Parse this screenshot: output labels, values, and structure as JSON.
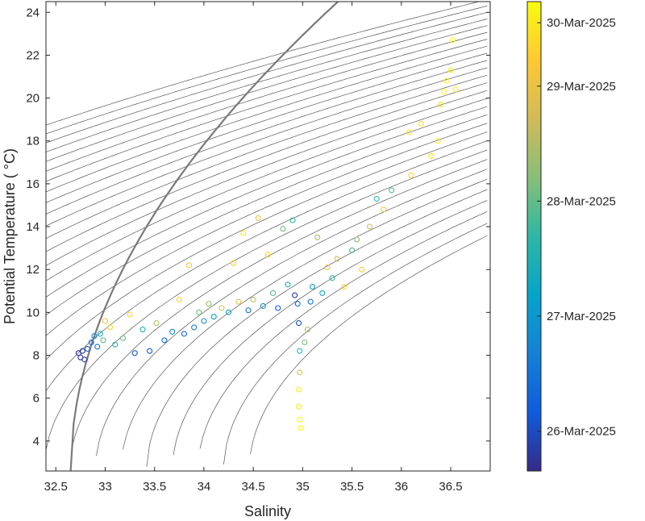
{
  "chart_data": {
    "type": "scatter",
    "title": "",
    "xlabel": "Salinity",
    "ylabel": "Potential Temperature ( °C)",
    "xlim": [
      32.4,
      36.9
    ],
    "ylim": [
      2.6,
      24.5
    ],
    "x_ticks": [
      32.5,
      33,
      33.5,
      34,
      34.5,
      35,
      35.5,
      36,
      36.5
    ],
    "x_tick_labels": [
      "32.5",
      "33",
      "33.5",
      "34",
      "34.5",
      "35",
      "35.5",
      "36",
      "36.5"
    ],
    "y_ticks": [
      4,
      6,
      8,
      10,
      12,
      14,
      16,
      18,
      20,
      22,
      24
    ],
    "y_tick_labels": [
      "4",
      "6",
      "8",
      "10",
      "12",
      "14",
      "16",
      "18",
      "20",
      "22",
      "24"
    ],
    "grid": false,
    "density_contours": "thin gray isopycnals with one bold reference isopycnal",
    "colorbar": {
      "label_values": [
        "26-Mar-2025",
        "27-Mar-2025",
        "28-Mar-2025",
        "29-Mar-2025",
        "30-Mar-2025"
      ],
      "tick_positions": [
        0.085,
        0.33,
        0.575,
        0.82,
        0.955
      ],
      "colormap": [
        "#352a87",
        "#0f5cdd",
        "#1481d6",
        "#06a4ca",
        "#2eb7a4",
        "#87bf77",
        "#d1bb59",
        "#fec832",
        "#f9fb0e"
      ]
    },
    "series": [
      {
        "note": "observations colored by date (0 = start, 1 = end of record)",
        "points": [
          {
            "s": 32.73,
            "t": 8.1,
            "c": 0.02
          },
          {
            "s": 32.75,
            "t": 7.9,
            "c": 0.03
          },
          {
            "s": 32.77,
            "t": 8.2,
            "c": 0.05
          },
          {
            "s": 32.79,
            "t": 7.8,
            "c": 0.04
          },
          {
            "s": 32.82,
            "t": 8.3,
            "c": 0.1
          },
          {
            "s": 32.86,
            "t": 8.6,
            "c": 0.18
          },
          {
            "s": 32.89,
            "t": 8.9,
            "c": 0.25
          },
          {
            "s": 32.92,
            "t": 8.4,
            "c": 0.2
          },
          {
            "s": 32.95,
            "t": 9.0,
            "c": 0.42
          },
          {
            "s": 32.98,
            "t": 8.7,
            "c": 0.55
          },
          {
            "s": 33.0,
            "t": 9.6,
            "c": 0.85
          },
          {
            "s": 33.05,
            "t": 9.3,
            "c": 0.9
          },
          {
            "s": 33.1,
            "t": 8.5,
            "c": 0.5
          },
          {
            "s": 33.18,
            "t": 8.8,
            "c": 0.6
          },
          {
            "s": 33.25,
            "t": 9.9,
            "c": 0.9
          },
          {
            "s": 33.3,
            "t": 8.1,
            "c": 0.1
          },
          {
            "s": 33.38,
            "t": 9.2,
            "c": 0.45
          },
          {
            "s": 33.45,
            "t": 8.2,
            "c": 0.12
          },
          {
            "s": 33.52,
            "t": 9.5,
            "c": 0.7
          },
          {
            "s": 33.6,
            "t": 8.7,
            "c": 0.2
          },
          {
            "s": 33.68,
            "t": 9.1,
            "c": 0.3
          },
          {
            "s": 33.75,
            "t": 10.6,
            "c": 0.9
          },
          {
            "s": 33.8,
            "t": 9.0,
            "c": 0.15
          },
          {
            "s": 33.85,
            "t": 12.2,
            "c": 0.85
          },
          {
            "s": 33.9,
            "t": 9.3,
            "c": 0.25
          },
          {
            "s": 33.95,
            "t": 10.0,
            "c": 0.6
          },
          {
            "s": 34.0,
            "t": 9.6,
            "c": 0.3
          },
          {
            "s": 34.05,
            "t": 10.4,
            "c": 0.65
          },
          {
            "s": 34.1,
            "t": 9.8,
            "c": 0.35
          },
          {
            "s": 34.18,
            "t": 10.2,
            "c": 0.75
          },
          {
            "s": 34.25,
            "t": 10.0,
            "c": 0.4
          },
          {
            "s": 34.3,
            "t": 12.3,
            "c": 0.9
          },
          {
            "s": 34.35,
            "t": 10.5,
            "c": 0.8
          },
          {
            "s": 34.4,
            "t": 13.7,
            "c": 0.95
          },
          {
            "s": 34.45,
            "t": 10.1,
            "c": 0.2
          },
          {
            "s": 34.5,
            "t": 10.6,
            "c": 0.7
          },
          {
            "s": 34.55,
            "t": 14.4,
            "c": 0.85
          },
          {
            "s": 34.6,
            "t": 10.3,
            "c": 0.3
          },
          {
            "s": 34.65,
            "t": 12.7,
            "c": 0.9
          },
          {
            "s": 34.7,
            "t": 10.9,
            "c": 0.55
          },
          {
            "s": 34.75,
            "t": 10.2,
            "c": 0.1
          },
          {
            "s": 34.8,
            "t": 13.9,
            "c": 0.6
          },
          {
            "s": 34.85,
            "t": 11.3,
            "c": 0.45
          },
          {
            "s": 34.9,
            "t": 14.3,
            "c": 0.5
          },
          {
            "s": 34.92,
            "t": 10.8,
            "c": 0.05
          },
          {
            "s": 34.95,
            "t": 10.4,
            "c": 0.2
          },
          {
            "s": 34.96,
            "t": 9.5,
            "c": 0.1
          },
          {
            "s": 34.97,
            "t": 8.2,
            "c": 0.5
          },
          {
            "s": 34.97,
            "t": 7.2,
            "c": 0.8
          },
          {
            "s": 34.96,
            "t": 6.4,
            "c": 0.95
          },
          {
            "s": 34.96,
            "t": 5.6,
            "c": 0.97
          },
          {
            "s": 34.97,
            "t": 5.0,
            "c": 1.0
          },
          {
            "s": 34.98,
            "t": 4.6,
            "c": 0.98
          },
          {
            "s": 35.02,
            "t": 8.6,
            "c": 0.6
          },
          {
            "s": 35.05,
            "t": 9.2,
            "c": 0.7
          },
          {
            "s": 35.08,
            "t": 10.5,
            "c": 0.2
          },
          {
            "s": 35.1,
            "t": 11.2,
            "c": 0.35
          },
          {
            "s": 35.15,
            "t": 13.5,
            "c": 0.7
          },
          {
            "s": 35.2,
            "t": 10.9,
            "c": 0.4
          },
          {
            "s": 35.25,
            "t": 12.1,
            "c": 0.85
          },
          {
            "s": 35.3,
            "t": 11.6,
            "c": 0.5
          },
          {
            "s": 35.35,
            "t": 12.5,
            "c": 0.75
          },
          {
            "s": 35.42,
            "t": 11.2,
            "c": 0.9
          },
          {
            "s": 35.5,
            "t": 12.9,
            "c": 0.55
          },
          {
            "s": 35.55,
            "t": 13.4,
            "c": 0.65
          },
          {
            "s": 35.6,
            "t": 12.0,
            "c": 0.88
          },
          {
            "s": 35.68,
            "t": 14.0,
            "c": 0.75
          },
          {
            "s": 35.75,
            "t": 15.3,
            "c": 0.5
          },
          {
            "s": 35.82,
            "t": 14.8,
            "c": 0.85
          },
          {
            "s": 35.9,
            "t": 15.7,
            "c": 0.55
          },
          {
            "s": 36.08,
            "t": 18.4,
            "c": 0.95
          },
          {
            "s": 36.1,
            "t": 16.4,
            "c": 0.9
          },
          {
            "s": 36.2,
            "t": 18.8,
            "c": 0.93
          },
          {
            "s": 36.3,
            "t": 17.3,
            "c": 0.95
          },
          {
            "s": 36.37,
            "t": 18.0,
            "c": 0.96
          },
          {
            "s": 36.4,
            "t": 19.7,
            "c": 0.95
          },
          {
            "s": 36.43,
            "t": 20.3,
            "c": 0.97
          },
          {
            "s": 36.46,
            "t": 20.8,
            "c": 0.97
          },
          {
            "s": 36.5,
            "t": 21.3,
            "c": 0.98
          },
          {
            "s": 36.52,
            "t": 22.7,
            "c": 1.0
          },
          {
            "s": 36.55,
            "t": 20.4,
            "c": 0.96
          }
        ]
      }
    ]
  }
}
